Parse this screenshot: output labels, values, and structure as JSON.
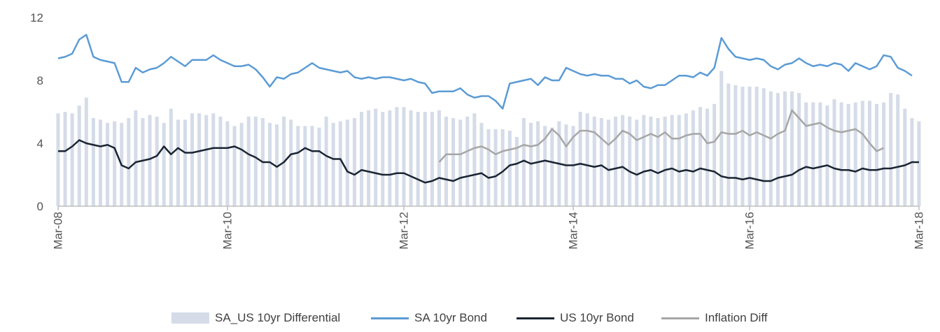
{
  "chart_data": {
    "type": "bar+line",
    "x_start": "2008-03",
    "x_end": "2018-03",
    "y_ticks": [
      0,
      4,
      8,
      12
    ],
    "ylim": [
      0,
      12
    ],
    "x_tick_labels": [
      "Mar-08",
      "Mar-10",
      "Mar-12",
      "Mar-14",
      "Mar-16",
      "Mar-18"
    ],
    "grid": false,
    "legend": "bottom",
    "series": [
      {
        "name": "SA_US 10yr Differential",
        "type": "bar",
        "color": "#d5dce8",
        "values": [
          5.9,
          6.0,
          5.9,
          6.4,
          6.9,
          5.6,
          5.5,
          5.3,
          5.4,
          5.3,
          5.6,
          6.1,
          5.6,
          5.8,
          5.7,
          5.3,
          6.2,
          5.5,
          5.5,
          5.9,
          5.9,
          5.8,
          5.9,
          5.7,
          5.4,
          5.1,
          5.3,
          5.7,
          5.7,
          5.6,
          5.3,
          5.2,
          5.7,
          5.5,
          5.1,
          5.1,
          5.1,
          5.0,
          5.7,
          5.3,
          5.4,
          5.5,
          5.6,
          6.0,
          6.1,
          6.2,
          6.0,
          6.1,
          6.3,
          6.3,
          6.1,
          6.0,
          6.0,
          6.0,
          6.1,
          5.7,
          5.6,
          5.5,
          5.7,
          5.9,
          5.3,
          4.9,
          4.9,
          4.9,
          4.8,
          4.4,
          5.6,
          5.3,
          5.4,
          5.1,
          5.0,
          5.4,
          5.2,
          5.1,
          6.0,
          5.9,
          5.7,
          5.6,
          5.5,
          5.7,
          5.8,
          5.7,
          5.5,
          5.8,
          5.7,
          5.6,
          5.7,
          5.8,
          5.8,
          5.9,
          6.1,
          6.3,
          6.2,
          6.5,
          8.6,
          7.8,
          7.7,
          7.6,
          7.6,
          7.6,
          7.5,
          7.3,
          7.2,
          7.3,
          7.3,
          7.2,
          6.6,
          6.6,
          6.6,
          6.4,
          6.8,
          6.6,
          6.5,
          6.6,
          6.7,
          6.7,
          6.5,
          6.6,
          7.2,
          7.1,
          6.2,
          5.6,
          5.4
        ]
      },
      {
        "name": "SA 10yr Bond",
        "type": "line",
        "color": "#5b9bd5",
        "values": [
          9.4,
          9.5,
          9.7,
          10.6,
          10.9,
          9.5,
          9.3,
          9.2,
          9.1,
          7.9,
          7.9,
          8.8,
          8.5,
          8.7,
          8.8,
          9.1,
          9.5,
          9.2,
          8.9,
          9.3,
          9.3,
          9.3,
          9.6,
          9.3,
          9.1,
          8.9,
          8.9,
          9.0,
          8.7,
          8.2,
          7.6,
          8.2,
          8.1,
          8.4,
          8.5,
          8.8,
          9.1,
          8.8,
          8.7,
          8.6,
          8.5,
          8.6,
          8.2,
          8.1,
          8.2,
          8.1,
          8.2,
          8.2,
          8.1,
          8.0,
          8.1,
          7.9,
          7.8,
          7.2,
          7.3,
          7.3,
          7.3,
          7.5,
          7.1,
          6.9,
          7.0,
          7.0,
          6.7,
          6.2,
          7.8,
          7.9,
          8.0,
          8.1,
          7.7,
          8.2,
          8.0,
          8.0,
          8.8,
          8.6,
          8.4,
          8.3,
          8.4,
          8.3,
          8.3,
          8.1,
          8.1,
          7.8,
          8.0,
          7.6,
          7.5,
          7.7,
          7.7,
          8.0,
          8.3,
          8.3,
          8.2,
          8.5,
          8.3,
          8.8,
          10.7,
          10.0,
          9.5,
          9.4,
          9.3,
          9.4,
          9.3,
          8.9,
          8.7,
          9.0,
          9.1,
          9.4,
          9.1,
          8.9,
          9.0,
          8.9,
          9.1,
          9.0,
          8.6,
          9.1,
          8.9,
          8.7,
          8.9,
          9.6,
          9.5,
          8.8,
          8.6,
          8.3
        ]
      },
      {
        "name": "US 10yr Bond",
        "type": "line",
        "color": "#1a2432",
        "values": [
          3.5,
          3.5,
          3.8,
          4.2,
          4.0,
          3.9,
          3.8,
          3.9,
          3.7,
          2.6,
          2.4,
          2.8,
          2.9,
          3.0,
          3.2,
          3.8,
          3.3,
          3.7,
          3.4,
          3.4,
          3.5,
          3.6,
          3.7,
          3.7,
          3.7,
          3.8,
          3.6,
          3.3,
          3.1,
          2.8,
          2.8,
          2.5,
          2.8,
          3.3,
          3.4,
          3.7,
          3.5,
          3.5,
          3.2,
          3.0,
          3.0,
          2.2,
          2.0,
          2.3,
          2.2,
          2.1,
          2.0,
          2.0,
          2.1,
          2.1,
          1.9,
          1.7,
          1.5,
          1.6,
          1.8,
          1.7,
          1.6,
          1.8,
          1.9,
          2.0,
          2.1,
          1.8,
          1.9,
          2.2,
          2.6,
          2.7,
          2.9,
          2.7,
          2.8,
          2.9,
          2.8,
          2.7,
          2.6,
          2.6,
          2.7,
          2.6,
          2.5,
          2.6,
          2.3,
          2.4,
          2.5,
          2.2,
          2.0,
          2.2,
          2.3,
          2.1,
          2.3,
          2.4,
          2.2,
          2.3,
          2.2,
          2.4,
          2.3,
          2.2,
          1.9,
          1.8,
          1.8,
          1.7,
          1.8,
          1.7,
          1.6,
          1.6,
          1.8,
          1.9,
          2.0,
          2.3,
          2.5,
          2.4,
          2.5,
          2.6,
          2.4,
          2.3,
          2.3,
          2.2,
          2.4,
          2.3,
          2.3,
          2.4,
          2.4,
          2.5,
          2.6,
          2.8,
          2.8
        ]
      },
      {
        "name": "Inflation Diff",
        "type": "line",
        "color": "#a6a6a6",
        "start_index": 54,
        "values": [
          2.8,
          3.3,
          3.3,
          3.3,
          3.5,
          3.7,
          3.8,
          3.6,
          3.3,
          3.5,
          3.6,
          3.7,
          3.9,
          3.8,
          3.9,
          4.3,
          4.9,
          4.5,
          3.8,
          4.4,
          4.8,
          4.8,
          4.7,
          4.3,
          3.9,
          4.3,
          4.8,
          4.6,
          4.2,
          4.4,
          4.6,
          4.4,
          4.7,
          4.3,
          4.3,
          4.5,
          4.6,
          4.6,
          4.0,
          4.1,
          4.7,
          4.6,
          4.6,
          4.8,
          4.5,
          4.7,
          4.5,
          4.3,
          4.6,
          4.8,
          6.1,
          5.6,
          5.1,
          5.2,
          5.3,
          5.0,
          4.8,
          4.7,
          4.8,
          4.9,
          4.6,
          4.0,
          3.5,
          3.7
        ]
      }
    ]
  }
}
